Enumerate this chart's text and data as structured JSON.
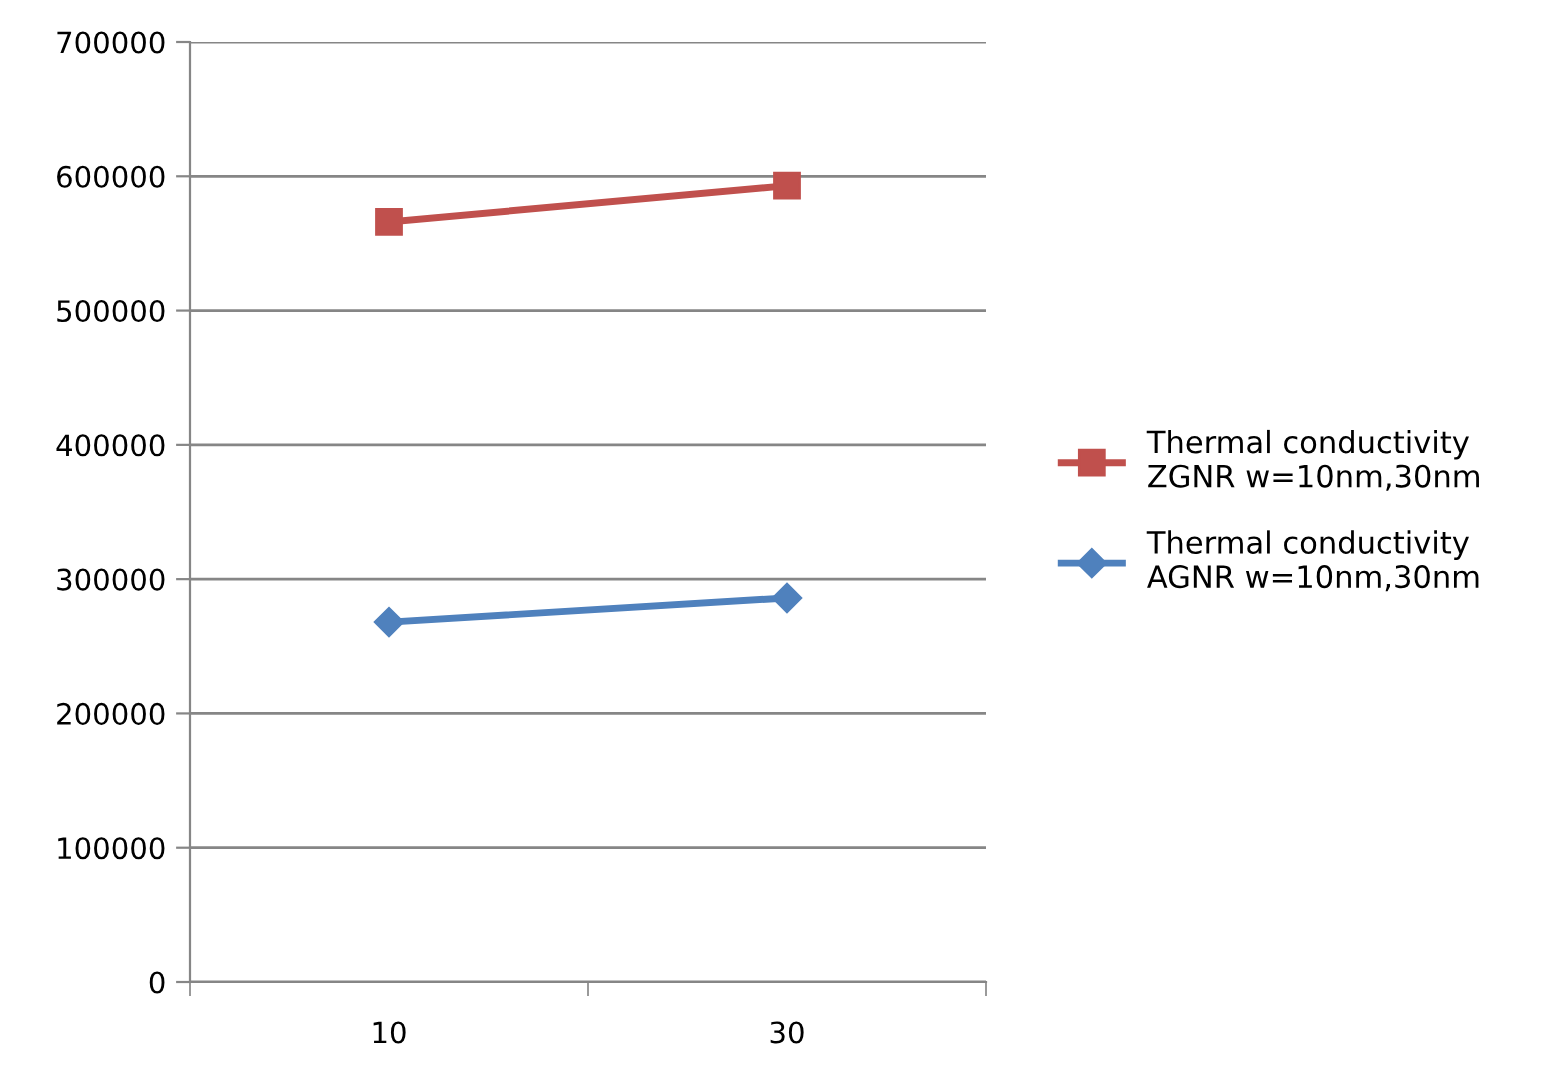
{
  "chart_data": {
    "type": "line",
    "categories": [
      "10",
      "30"
    ],
    "series": [
      {
        "name": "Thermal conductivity\nZGNR w=10nm,30nm",
        "color": "#c0504d",
        "marker": "square",
        "values": [
          566000,
          593000
        ]
      },
      {
        "name": "Thermal conductivity\nAGNR w=10nm,30nm",
        "color": "#4f81bd",
        "marker": "diamond",
        "values": [
          268000,
          286000
        ]
      }
    ],
    "ylim": [
      0,
      700000
    ],
    "yticks": [
      0,
      100000,
      200000,
      300000,
      400000,
      500000,
      600000,
      700000
    ],
    "grid": "y",
    "legend": "right",
    "line_style": "solid"
  }
}
